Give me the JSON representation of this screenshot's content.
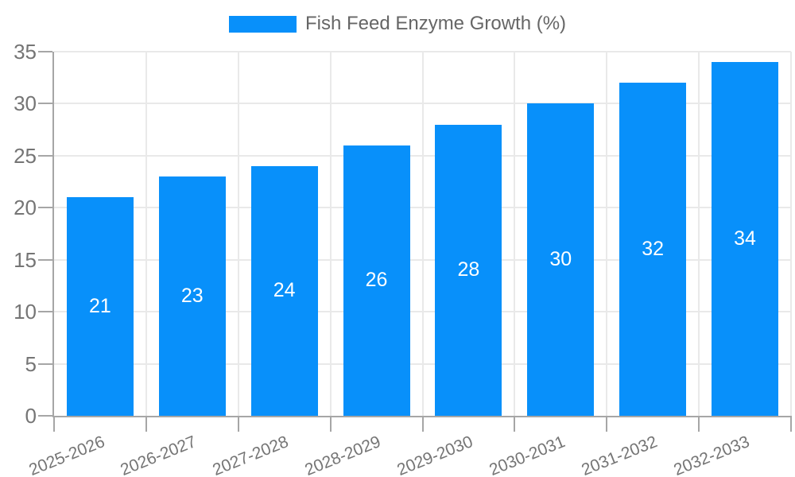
{
  "chart_data": {
    "type": "bar",
    "title": "Fish Feed Enzyme Growth (%)",
    "legend_position": "top",
    "categories": [
      "2025-2026",
      "2026-2027",
      "2027-2028",
      "2028-2029",
      "2029-2030",
      "2030-2031",
      "2031-2032",
      "2032-2033"
    ],
    "values": [
      21,
      23,
      24,
      26,
      28,
      30,
      32,
      34
    ],
    "xlabel": "",
    "ylabel": "",
    "ylim": [
      0,
      35
    ],
    "yticks": [
      0,
      5,
      10,
      15,
      20,
      25,
      30,
      35
    ],
    "grid": "both",
    "x_label_rotation_deg": -22,
    "colors": {
      "bar": "#0890fa",
      "bar_label": "#ffffff",
      "grid": "#e9e9e9",
      "axis": "#a6a6a6",
      "tick_label": "#757575",
      "legend_text": "#666666",
      "background": "#ffffff"
    }
  }
}
